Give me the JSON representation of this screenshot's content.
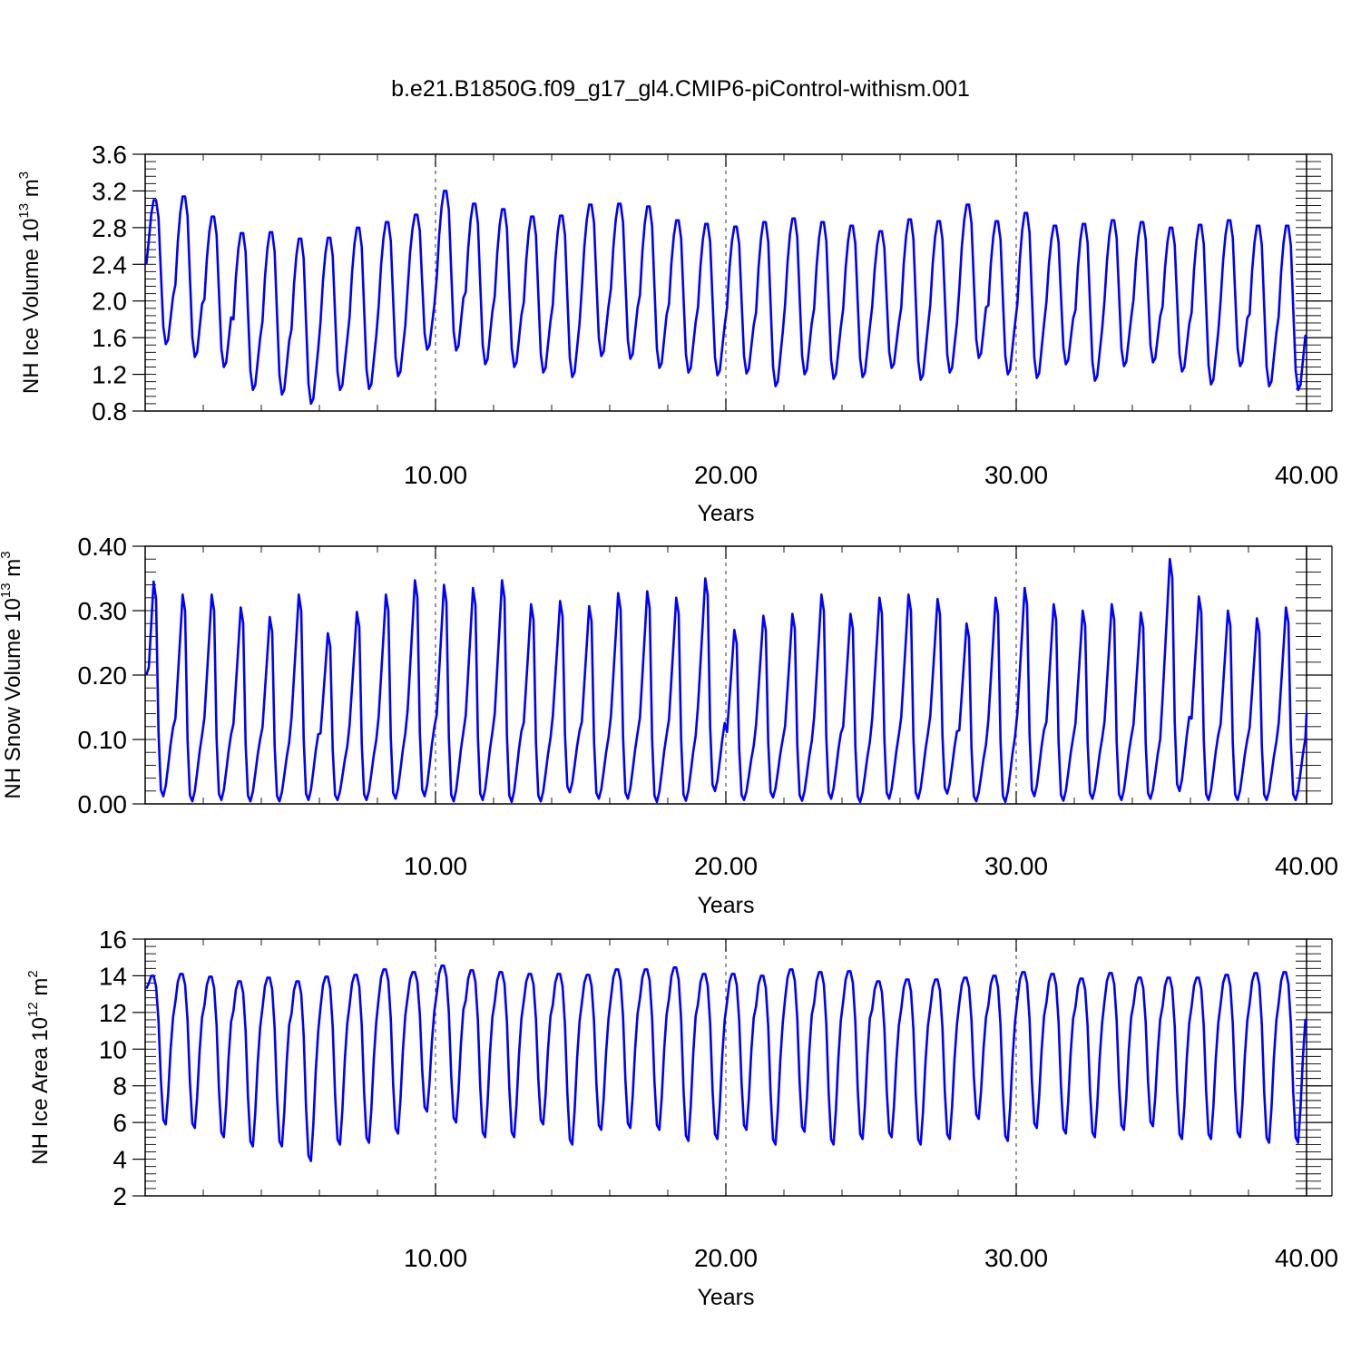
{
  "figure": {
    "title": "b.e21.B1850G.f09_g17_gl4.CMIP6-piControl-withism.001"
  },
  "chart_data": [
    {
      "type": "line",
      "xlabel": "Years",
      "ylabel_main": "NH Ice Volume 10",
      "ylabel_exp": "13",
      "ylabel_unit": " m",
      "ylabel_unit_exp": "3",
      "xlim": [
        0,
        40
      ],
      "ylim": [
        0.8,
        3.6
      ],
      "x_ticks": [
        10,
        20,
        30,
        40
      ],
      "x_tick_labels": [
        "10.00",
        "20.00",
        "30.00",
        "40.00"
      ],
      "y_ticks": [
        0.8,
        1.2,
        1.6,
        2.0,
        2.4,
        2.8,
        3.2,
        3.6
      ],
      "y_tick_labels": [
        "0.8",
        "1.2",
        "1.6",
        "2.0",
        "2.4",
        "2.8",
        "3.2",
        "3.6"
      ],
      "y_minor_step": 0.08,
      "grid_x": [
        10,
        20,
        30
      ],
      "series_color": "#0000ff",
      "annual_cycle_shape": [
        0.45,
        0.72,
        0.9,
        1.0,
        1.0,
        0.88,
        0.5,
        0.12,
        0.0,
        0.03,
        0.18,
        0.33
      ],
      "years_max": [
        3.1,
        3.14,
        2.92,
        2.74,
        2.75,
        2.68,
        2.69,
        2.8,
        2.86,
        2.94,
        3.2,
        3.06,
        3.0,
        2.92,
        2.93,
        3.05,
        3.06,
        3.03,
        2.88,
        2.84,
        2.81,
        2.86,
        2.9,
        2.86,
        2.82,
        2.76,
        2.89,
        2.87,
        3.05,
        2.87,
        2.96,
        2.82,
        2.84,
        2.88,
        2.86,
        2.8,
        2.83,
        2.88,
        2.82,
        2.82
      ],
      "years_min": [
        1.53,
        1.39,
        1.28,
        1.03,
        0.98,
        0.88,
        1.03,
        1.04,
        1.18,
        1.47,
        1.46,
        1.31,
        1.28,
        1.22,
        1.17,
        1.4,
        1.37,
        1.27,
        1.22,
        1.19,
        1.21,
        1.07,
        1.2,
        1.15,
        1.17,
        1.27,
        1.14,
        1.22,
        1.38,
        1.2,
        1.16,
        1.31,
        1.13,
        1.29,
        1.33,
        1.23,
        1.09,
        1.29,
        1.07,
        1.03
      ],
      "start_value": 2.4,
      "end_value": 1.6
    },
    {
      "type": "line",
      "xlabel": "Years",
      "ylabel_main": "NH Snow Volume 10",
      "ylabel_exp": "13",
      "ylabel_unit": " m",
      "ylabel_unit_exp": "3",
      "xlim": [
        0,
        40
      ],
      "ylim": [
        0.0,
        0.4
      ],
      "x_ticks": [
        10,
        20,
        30,
        40
      ],
      "x_tick_labels": [
        "10.00",
        "20.00",
        "30.00",
        "40.00"
      ],
      "y_ticks": [
        0.0,
        0.1,
        0.2,
        0.3,
        0.4
      ],
      "y_tick_labels": [
        "0.00",
        "0.10",
        "0.20",
        "0.30",
        "0.40"
      ],
      "y_minor_step": 0.02,
      "grid_x": [
        10,
        20,
        30
      ],
      "series_color": "#0000ff",
      "annual_cycle_shape": [
        0.4,
        0.6,
        0.8,
        1.0,
        0.92,
        0.3,
        0.03,
        0.0,
        0.05,
        0.14,
        0.24,
        0.32
      ],
      "years_max": [
        0.345,
        0.325,
        0.325,
        0.305,
        0.29,
        0.325,
        0.265,
        0.298,
        0.325,
        0.347,
        0.34,
        0.335,
        0.347,
        0.31,
        0.315,
        0.307,
        0.327,
        0.33,
        0.32,
        0.35,
        0.27,
        0.292,
        0.295,
        0.325,
        0.295,
        0.32,
        0.325,
        0.318,
        0.28,
        0.32,
        0.335,
        0.31,
        0.3,
        0.31,
        0.297,
        0.38,
        0.322,
        0.3,
        0.288,
        0.305
      ],
      "years_min": [
        0.012,
        0.004,
        0.006,
        0.004,
        0.004,
        0.006,
        0.006,
        0.006,
        0.008,
        0.012,
        0.004,
        0.006,
        0.003,
        0.004,
        0.018,
        0.008,
        0.008,
        0.003,
        0.005,
        0.02,
        0.006,
        0.01,
        0.005,
        0.008,
        0.003,
        0.008,
        0.008,
        0.016,
        0.004,
        0.003,
        0.012,
        0.005,
        0.008,
        0.006,
        0.008,
        0.02,
        0.006,
        0.006,
        0.006,
        0.006
      ],
      "start_value": 0.2,
      "end_value": 0.14
    },
    {
      "type": "line",
      "xlabel": "Years",
      "ylabel_main": "NH Ice Area 10",
      "ylabel_exp": "12",
      "ylabel_unit": " m",
      "ylabel_unit_exp": "2",
      "xlim": [
        0,
        40
      ],
      "ylim": [
        2,
        16
      ],
      "x_ticks": [
        10,
        20,
        30,
        40
      ],
      "x_tick_labels": [
        "10.00",
        "20.00",
        "30.00",
        "40.00"
      ],
      "y_ticks": [
        2,
        4,
        6,
        8,
        10,
        12,
        14,
        16
      ],
      "y_tick_labels": [
        "2",
        "4",
        "6",
        "8",
        "10",
        "12",
        "14",
        "16"
      ],
      "y_minor_step": 0.4,
      "grid_x": [
        10,
        20,
        30
      ],
      "series_color": "#0000ff",
      "annual_cycle_shape": [
        0.82,
        0.95,
        1.0,
        1.0,
        0.93,
        0.7,
        0.3,
        0.03,
        0.0,
        0.2,
        0.5,
        0.72
      ],
      "years_max": [
        14.0,
        14.1,
        13.95,
        13.7,
        13.9,
        13.7,
        13.95,
        14.05,
        14.35,
        14.2,
        14.55,
        14.3,
        14.2,
        14.1,
        14.1,
        14.05,
        14.35,
        14.35,
        14.45,
        14.1,
        14.1,
        14.0,
        14.35,
        14.2,
        14.25,
        13.7,
        13.8,
        13.8,
        13.9,
        14.0,
        14.2,
        14.1,
        13.85,
        14.15,
        13.9,
        13.9,
        13.9,
        14.05,
        14.15,
        14.2
      ],
      "years_min": [
        5.9,
        5.7,
        5.2,
        4.7,
        4.7,
        3.9,
        4.8,
        4.9,
        5.4,
        6.6,
        6.0,
        5.2,
        5.2,
        5.9,
        4.8,
        5.6,
        5.7,
        5.6,
        5.0,
        5.1,
        5.6,
        4.8,
        5.5,
        4.8,
        5.1,
        5.2,
        4.8,
        5.1,
        6.2,
        5.0,
        5.7,
        5.4,
        5.2,
        5.6,
        5.8,
        5.1,
        5.1,
        5.2,
        4.9,
        4.9
      ],
      "start_value": 13.3,
      "end_value": 11.5
    }
  ]
}
